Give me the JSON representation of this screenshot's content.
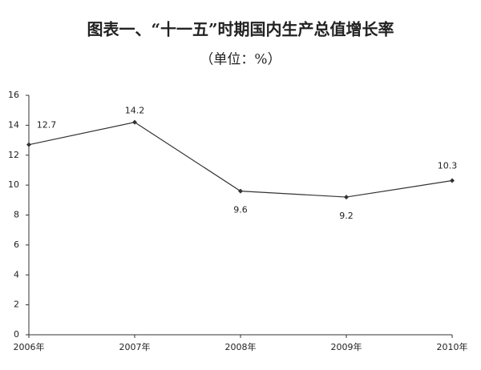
{
  "chart_data": {
    "type": "line",
    "title": "图表一、“十一五”时期国内生产总值增长率",
    "subtitle": "（单位：%）",
    "categories": [
      "2006年",
      "2007年",
      "2008年",
      "2009年",
      "2010年"
    ],
    "values": [
      12.7,
      14.2,
      9.6,
      9.2,
      10.3
    ],
    "color": "#333333",
    "ylim": [
      0,
      16
    ],
    "yticks": [
      0,
      2,
      4,
      6,
      8,
      10,
      12,
      14,
      16
    ],
    "grid": false
  }
}
